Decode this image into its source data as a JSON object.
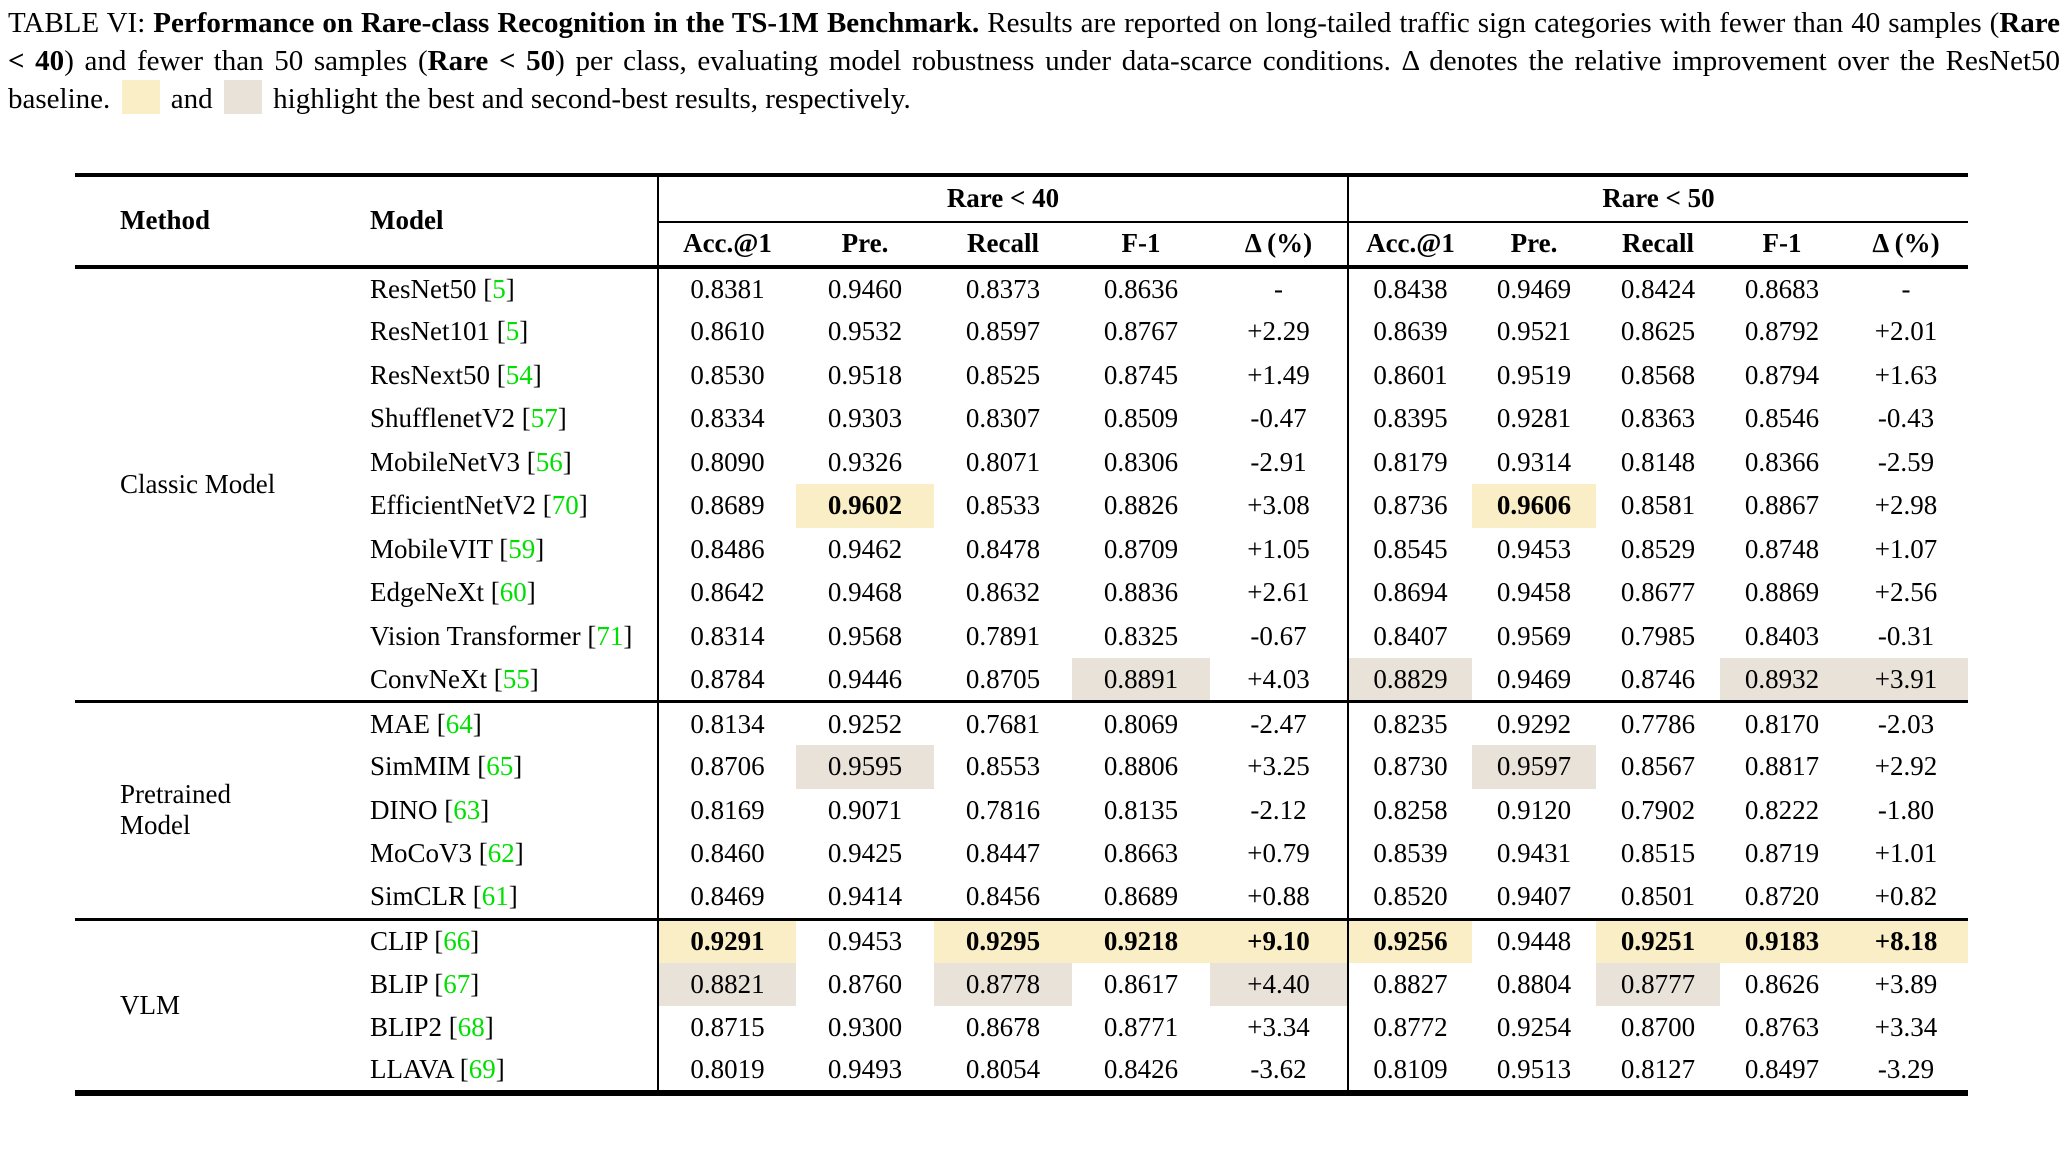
{
  "colors": {
    "best_highlight": "#FAEEC6",
    "second_highlight": "#E8E2D9",
    "citation_green": "#00E000",
    "text": "#000000"
  },
  "caption": {
    "label": "TABLE VI: ",
    "title_bold": "Performance on Rare-class Recognition in the TS-1M Benchmark.",
    "seg1": " Results are reported on long-tailed traffic sign categories with fewer than 40 samples (",
    "rare40_bold": "Rare < 40",
    "seg2": ") and fewer than 50 samples (",
    "rare50_bold": "Rare < 50",
    "seg3": ") per class, evaluating model robustness under data-scarce conditions. Δ denotes the relative improvement over the ResNet50 baseline. ",
    "seg4": " and ",
    "seg5": " highlight the best and second-best results, respectively."
  },
  "table": {
    "headers": {
      "method": "Method",
      "model": "Model",
      "group1": "Rare < 40",
      "group2": "Rare < 50",
      "metrics": [
        "Acc.@1",
        "Pre.",
        "Recall",
        "F-1",
        "Δ (%)"
      ]
    },
    "legend": {
      "best": "yellow = best result (bold)",
      "second": "gray = second-best result"
    },
    "groups": [
      {
        "method": "Classic Model",
        "rows": [
          {
            "model": "ResNet50",
            "cite": "5",
            "r40": [
              "0.8381",
              "0.9460",
              "0.8373",
              "0.8636",
              "-"
            ],
            "hl40": [
              0,
              0,
              0,
              0,
              0
            ],
            "r50": [
              "0.8438",
              "0.9469",
              "0.8424",
              "0.8683",
              "-"
            ],
            "hl50": [
              0,
              0,
              0,
              0,
              0
            ]
          },
          {
            "model": "ResNet101",
            "cite": "5",
            "r40": [
              "0.8610",
              "0.9532",
              "0.8597",
              "0.8767",
              "+2.29"
            ],
            "hl40": [
              0,
              0,
              0,
              0,
              0
            ],
            "r50": [
              "0.8639",
              "0.9521",
              "0.8625",
              "0.8792",
              "+2.01"
            ],
            "hl50": [
              0,
              0,
              0,
              0,
              0
            ]
          },
          {
            "model": "ResNext50",
            "cite": "54",
            "r40": [
              "0.8530",
              "0.9518",
              "0.8525",
              "0.8745",
              "+1.49"
            ],
            "hl40": [
              0,
              0,
              0,
              0,
              0
            ],
            "r50": [
              "0.8601",
              "0.9519",
              "0.8568",
              "0.8794",
              "+1.63"
            ],
            "hl50": [
              0,
              0,
              0,
              0,
              0
            ]
          },
          {
            "model": "ShufflenetV2",
            "cite": "57",
            "r40": [
              "0.8334",
              "0.9303",
              "0.8307",
              "0.8509",
              "-0.47"
            ],
            "hl40": [
              0,
              0,
              0,
              0,
              0
            ],
            "r50": [
              "0.8395",
              "0.9281",
              "0.8363",
              "0.8546",
              "-0.43"
            ],
            "hl50": [
              0,
              0,
              0,
              0,
              0
            ]
          },
          {
            "model": "MobileNetV3",
            "cite": "56",
            "r40": [
              "0.8090",
              "0.9326",
              "0.8071",
              "0.8306",
              "-2.91"
            ],
            "hl40": [
              0,
              0,
              0,
              0,
              0
            ],
            "r50": [
              "0.8179",
              "0.9314",
              "0.8148",
              "0.8366",
              "-2.59"
            ],
            "hl50": [
              0,
              0,
              0,
              0,
              0
            ]
          },
          {
            "model": "EfficientNetV2",
            "cite": "70",
            "r40": [
              "0.8689",
              "0.9602",
              "0.8533",
              "0.8826",
              "+3.08"
            ],
            "hl40": [
              0,
              1,
              0,
              0,
              0
            ],
            "r50": [
              "0.8736",
              "0.9606",
              "0.8581",
              "0.8867",
              "+2.98"
            ],
            "hl50": [
              0,
              1,
              0,
              0,
              0
            ]
          },
          {
            "model": "MobileVIT",
            "cite": "59",
            "r40": [
              "0.8486",
              "0.9462",
              "0.8478",
              "0.8709",
              "+1.05"
            ],
            "hl40": [
              0,
              0,
              0,
              0,
              0
            ],
            "r50": [
              "0.8545",
              "0.9453",
              "0.8529",
              "0.8748",
              "+1.07"
            ],
            "hl50": [
              0,
              0,
              0,
              0,
              0
            ]
          },
          {
            "model": "EdgeNeXt",
            "cite": "60",
            "r40": [
              "0.8642",
              "0.9468",
              "0.8632",
              "0.8836",
              "+2.61"
            ],
            "hl40": [
              0,
              0,
              0,
              0,
              0
            ],
            "r50": [
              "0.8694",
              "0.9458",
              "0.8677",
              "0.8869",
              "+2.56"
            ],
            "hl50": [
              0,
              0,
              0,
              0,
              0
            ]
          },
          {
            "model": "Vision Transformer",
            "cite": "71",
            "r40": [
              "0.8314",
              "0.9568",
              "0.7891",
              "0.8325",
              "-0.67"
            ],
            "hl40": [
              0,
              0,
              0,
              0,
              0
            ],
            "r50": [
              "0.8407",
              "0.9569",
              "0.7985",
              "0.8403",
              "-0.31"
            ],
            "hl50": [
              0,
              0,
              0,
              0,
              0
            ]
          },
          {
            "model": "ConvNeXt",
            "cite": "55",
            "r40": [
              "0.8784",
              "0.9446",
              "0.8705",
              "0.8891",
              "+4.03"
            ],
            "hl40": [
              0,
              0,
              0,
              2,
              0
            ],
            "r50": [
              "0.8829",
              "0.9469",
              "0.8746",
              "0.8932",
              "+3.91"
            ],
            "hl50": [
              2,
              0,
              0,
              2,
              2
            ]
          }
        ]
      },
      {
        "method": "Pretrained Model",
        "rows": [
          {
            "model": "MAE",
            "cite": "64",
            "r40": [
              "0.8134",
              "0.9252",
              "0.7681",
              "0.8069",
              "-2.47"
            ],
            "hl40": [
              0,
              0,
              0,
              0,
              0
            ],
            "r50": [
              "0.8235",
              "0.9292",
              "0.7786",
              "0.8170",
              "-2.03"
            ],
            "hl50": [
              0,
              0,
              0,
              0,
              0
            ]
          },
          {
            "model": "SimMIM",
            "cite": "65",
            "r40": [
              "0.8706",
              "0.9595",
              "0.8553",
              "0.8806",
              "+3.25"
            ],
            "hl40": [
              0,
              2,
              0,
              0,
              0
            ],
            "r50": [
              "0.8730",
              "0.9597",
              "0.8567",
              "0.8817",
              "+2.92"
            ],
            "hl50": [
              0,
              2,
              0,
              0,
              0
            ]
          },
          {
            "model": "DINO",
            "cite": "63",
            "r40": [
              "0.8169",
              "0.9071",
              "0.7816",
              "0.8135",
              "-2.12"
            ],
            "hl40": [
              0,
              0,
              0,
              0,
              0
            ],
            "r50": [
              "0.8258",
              "0.9120",
              "0.7902",
              "0.8222",
              "-1.80"
            ],
            "hl50": [
              0,
              0,
              0,
              0,
              0
            ]
          },
          {
            "model": "MoCoV3",
            "cite": "62",
            "r40": [
              "0.8460",
              "0.9425",
              "0.8447",
              "0.8663",
              "+0.79"
            ],
            "hl40": [
              0,
              0,
              0,
              0,
              0
            ],
            "r50": [
              "0.8539",
              "0.9431",
              "0.8515",
              "0.8719",
              "+1.01"
            ],
            "hl50": [
              0,
              0,
              0,
              0,
              0
            ]
          },
          {
            "model": "SimCLR",
            "cite": "61",
            "r40": [
              "0.8469",
              "0.9414",
              "0.8456",
              "0.8689",
              "+0.88"
            ],
            "hl40": [
              0,
              0,
              0,
              0,
              0
            ],
            "r50": [
              "0.8520",
              "0.9407",
              "0.8501",
              "0.8720",
              "+0.82"
            ],
            "hl50": [
              0,
              0,
              0,
              0,
              0
            ]
          }
        ]
      },
      {
        "method": "VLM",
        "rows": [
          {
            "model": "CLIP",
            "cite": "66",
            "r40": [
              "0.9291",
              "0.9453",
              "0.9295",
              "0.9218",
              "+9.10"
            ],
            "hl40": [
              1,
              0,
              1,
              1,
              1
            ],
            "r50": [
              "0.9256",
              "0.9448",
              "0.9251",
              "0.9183",
              "+8.18"
            ],
            "hl50": [
              1,
              0,
              1,
              1,
              1
            ]
          },
          {
            "model": "BLIP",
            "cite": "67",
            "r40": [
              "0.8821",
              "0.8760",
              "0.8778",
              "0.8617",
              "+4.40"
            ],
            "hl40": [
              2,
              0,
              2,
              0,
              2
            ],
            "r50": [
              "0.8827",
              "0.8804",
              "0.8777",
              "0.8626",
              "+3.89"
            ],
            "hl50": [
              0,
              0,
              2,
              0,
              0
            ]
          },
          {
            "model": "BLIP2",
            "cite": "68",
            "r40": [
              "0.8715",
              "0.9300",
              "0.8678",
              "0.8771",
              "+3.34"
            ],
            "hl40": [
              0,
              0,
              0,
              0,
              0
            ],
            "r50": [
              "0.8772",
              "0.9254",
              "0.8700",
              "0.8763",
              "+3.34"
            ],
            "hl50": [
              0,
              0,
              0,
              0,
              0
            ]
          },
          {
            "model": "LLAVA",
            "cite": "69",
            "r40": [
              "0.8019",
              "0.9493",
              "0.8054",
              "0.8426",
              "-3.62"
            ],
            "hl40": [
              0,
              0,
              0,
              0,
              0
            ],
            "r50": [
              "0.8109",
              "0.9513",
              "0.8127",
              "0.8497",
              "-3.29"
            ],
            "hl50": [
              0,
              0,
              0,
              0,
              0
            ]
          }
        ]
      }
    ]
  }
}
